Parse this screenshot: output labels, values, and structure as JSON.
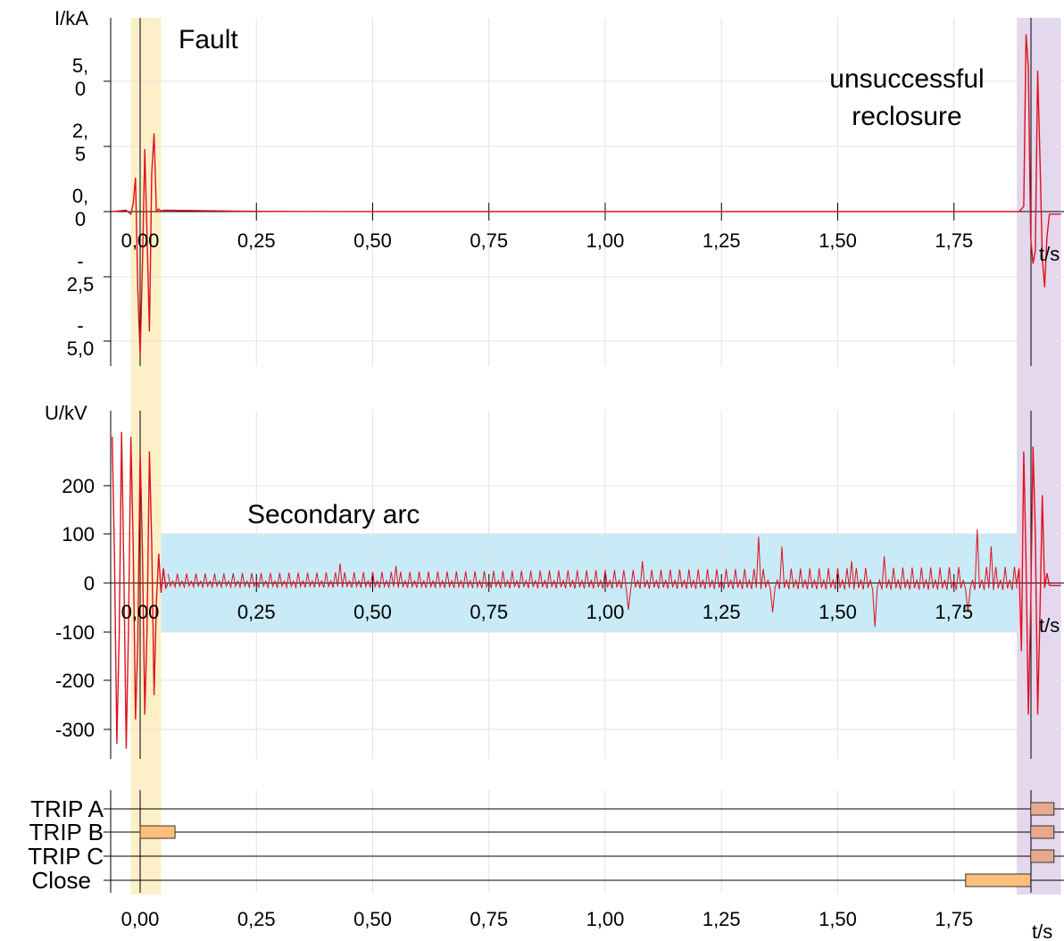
{
  "chart_data": {
    "type": "line",
    "time_axis": {
      "label": "t/s",
      "range": [
        -0.06,
        1.98
      ],
      "ticks": [
        0,
        0.25,
        0.5,
        0.75,
        1.0,
        1.25,
        1.5,
        1.75
      ],
      "tick_labels": [
        "0,00",
        "0,25",
        "0,50",
        "0,75",
        "1,00",
        "1,25",
        "1,50",
        "1,75"
      ],
      "grid": true
    },
    "highlights": [
      {
        "label": "Fault",
        "t_start": -0.02,
        "t_end": 0.045,
        "color": "#fdf0c8"
      },
      {
        "label": "unsuccessful reclosure",
        "t_start": 1.885,
        "t_end": 1.98,
        "color": "#e4d8ee"
      }
    ],
    "colors": {
      "signal": "#e0101e",
      "secondary_arc_band": "#c9eaf7",
      "trip_bar": "#fdbf7a",
      "trip_bar_late": "#e6a98f"
    },
    "panels": [
      {
        "name": "current",
        "ylabel": "I/kA",
        "ylim": [
          -6.2,
          7.0
        ],
        "yticks": [
          5.0,
          2.5,
          0.0,
          -2.5,
          -5.0
        ],
        "ytick_labels": [
          [
            "5,",
            "0"
          ],
          [
            "2,",
            "5"
          ],
          [
            "0,",
            "0"
          ],
          [
            "-",
            "2,5"
          ],
          [
            "-",
            "5,0"
          ]
        ],
        "series": {
          "segments": [
            {
              "t": [
                -0.06,
                -0.03,
                -0.02,
                -0.015,
                -0.01,
                -0.005,
                0.0,
                0.005,
                0.01,
                0.015,
                0.02,
                0.025,
                0.03,
                0.035,
                0.04,
                0.045,
                0.05,
                0.25,
                0.5,
                0.75,
                1.0,
                1.25,
                1.5,
                1.75,
                1.89
              ],
              "y": [
                0.0,
                0.05,
                -0.1,
                0.3,
                1.3,
                -3.0,
                -5.5,
                -2.0,
                2.4,
                -1.0,
                -4.6,
                1.5,
                3.0,
                0.0,
                0.1,
                0.02,
                0.05,
                0.01,
                0.0,
                0.0,
                0.0,
                0.0,
                0.0,
                0.0,
                0.0
              ]
            },
            {
              "t": [
                1.89,
                1.9,
                1.905,
                1.91,
                1.915,
                1.92,
                1.925,
                1.93,
                1.935,
                1.94,
                1.945,
                1.95,
                1.955,
                1.96,
                1.97,
                1.98
              ],
              "y": [
                0.0,
                0.2,
                6.8,
                5.5,
                -1.0,
                -2.0,
                -1.5,
                5.4,
                2.0,
                -1.8,
                -2.9,
                -1.0,
                -0.1,
                -0.1,
                -0.1,
                -0.1
              ]
            }
          ]
        }
      },
      {
        "name": "voltage",
        "ylabel": "U/kV",
        "ylim": [
          -360,
          360
        ],
        "yticks": [
          200,
          100,
          0,
          -100,
          -200,
          -300
        ],
        "ytick_labels": [
          "200",
          "100",
          "0",
          "-100",
          "-200",
          "-300"
        ],
        "band": {
          "label": "Secondary arc",
          "t_start": 0.045,
          "t_end": 1.885,
          "y_min": -100,
          "y_max": 100
        },
        "series": {
          "early": {
            "t": [
              -0.06,
              -0.055,
              -0.05,
              -0.045,
              -0.04,
              -0.035,
              -0.03,
              -0.025,
              -0.02,
              -0.015,
              -0.01,
              -0.005,
              0.0,
              0.005,
              0.01,
              0.015,
              0.02,
              0.025,
              0.03,
              0.035,
              0.04,
              0.045,
              0.05,
              0.055,
              0.06
            ],
            "y": [
              300,
              50,
              -330,
              -100,
              310,
              20,
              -340,
              -90,
              300,
              80,
              -280,
              -120,
              270,
              60,
              -270,
              -90,
              270,
              80,
              -230,
              -40,
              60,
              -20,
              30,
              -10,
              0
            ]
          },
          "arc": {
            "t_start": 0.06,
            "t_end": 1.885,
            "period": 0.02,
            "base_amplitude": 18,
            "growth": 14,
            "spikes": [
              {
                "t": 1.33,
                "y": 95
              },
              {
                "t": 1.36,
                "y": -60
              },
              {
                "t": 1.38,
                "y": 75
              },
              {
                "t": 1.05,
                "y": -55
              },
              {
                "t": 1.58,
                "y": -90
              },
              {
                "t": 1.6,
                "y": 55
              },
              {
                "t": 1.8,
                "y": 110
              },
              {
                "t": 1.83,
                "y": 75
              },
              {
                "t": 1.78,
                "y": -60
              },
              {
                "t": 1.53,
                "y": 45
              },
              {
                "t": 1.08,
                "y": 45
              },
              {
                "t": 0.43,
                "y": 40
              },
              {
                "t": 0.55,
                "y": 35
              }
            ]
          },
          "late": {
            "t": [
              1.885,
              1.89,
              1.895,
              1.9,
              1.905,
              1.91,
              1.915,
              1.92,
              1.925,
              1.93,
              1.935,
              1.94,
              1.945,
              1.95,
              1.955,
              1.96,
              1.97,
              1.98
            ],
            "y": [
              0,
              30,
              -140,
              270,
              40,
              -270,
              -50,
              280,
              100,
              -270,
              -60,
              180,
              -10,
              20,
              -5,
              -5,
              -5,
              -5
            ]
          }
        }
      },
      {
        "name": "trip_signals",
        "signals": [
          "TRIP A",
          "TRIP B",
          "TRIP C",
          "Close"
        ],
        "bars": [
          {
            "signal": "TRIP B",
            "t_start": 0.0,
            "t_end": 0.075,
            "color": "#fdbf7a"
          },
          {
            "signal": "Close",
            "t_start": 1.775,
            "t_end": 1.915,
            "color": "#fdbf7a"
          },
          {
            "signal": "TRIP A",
            "t_start": 1.915,
            "t_end": 1.965,
            "color": "#e6a98f"
          },
          {
            "signal": "TRIP B",
            "t_start": 1.915,
            "t_end": 1.965,
            "color": "#e6a98f"
          },
          {
            "signal": "TRIP C",
            "t_start": 1.915,
            "t_end": 1.965,
            "color": "#e6a98f"
          }
        ]
      }
    ]
  }
}
